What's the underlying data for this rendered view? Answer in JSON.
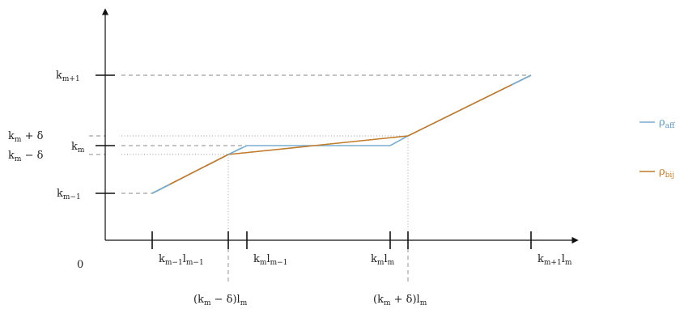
{
  "origin_label": "0",
  "y_labels": [
    {
      "base": "k",
      "sub": "m+1",
      "rest": ""
    },
    {
      "base": "k",
      "sub": "m",
      "rest": " + δ"
    },
    {
      "base": "k",
      "sub": "m",
      "rest": ""
    },
    {
      "base": "k",
      "sub": "m",
      "rest": " − δ"
    },
    {
      "base": "k",
      "sub": "m−1",
      "rest": ""
    }
  ],
  "x_labels_top": [
    {
      "t1": "k",
      "s1": "m−1",
      "t2": "l",
      "s2": "m−1"
    },
    {
      "t1": "k",
      "s1": "m",
      "t2": "l",
      "s2": "m−1"
    },
    {
      "t1": "k",
      "s1": "m",
      "t2": "l",
      "s2": "m"
    },
    {
      "t1": "k",
      "s1": "m+1",
      "t2": "l",
      "s2": "m"
    }
  ],
  "x_labels_bottom": [
    {
      "pre": "(k",
      "s1": "m",
      "mid": " − δ)l",
      "s2": "m"
    },
    {
      "pre": "(k",
      "s1": "m",
      "mid": " + δ)l",
      "s2": "m"
    }
  ],
  "legend": [
    {
      "base": "ρ",
      "sub": "aff",
      "color": "#7aaed0"
    },
    {
      "base": "ρ",
      "sub": "bij",
      "color": "#c07a2a"
    }
  ],
  "colors": {
    "aff": "#7aaed0",
    "bij": "#c07a2a",
    "axis": "#111111"
  }
}
